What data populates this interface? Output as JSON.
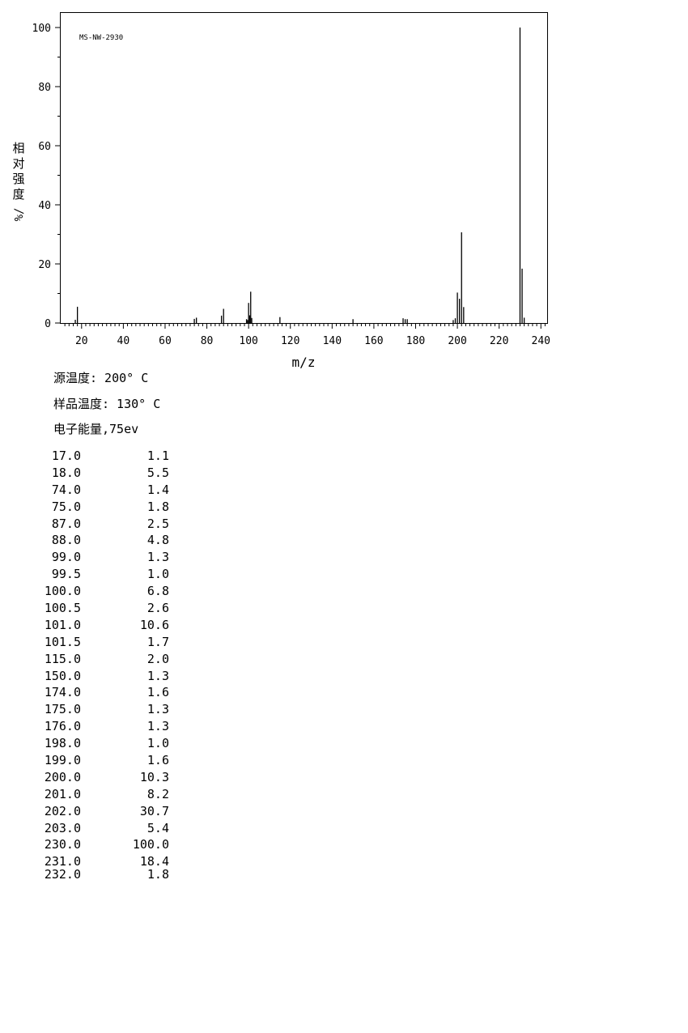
{
  "chart_data": {
    "type": "bar",
    "title": "",
    "watermark": "MS-NW-2930",
    "xlabel": "m/z",
    "ylabel": "相对强度/%",
    "xlim": [
      10,
      243
    ],
    "ylim": [
      0,
      105
    ],
    "xticks": [
      20,
      40,
      60,
      80,
      100,
      120,
      140,
      160,
      180,
      200,
      220,
      240
    ],
    "yticks": [
      0,
      20,
      40,
      60,
      80,
      100
    ],
    "grid": false,
    "series": [
      {
        "x": [
          17.0,
          18.0,
          74.0,
          75.0,
          87.0,
          88.0,
          99.0,
          99.5,
          100.0,
          100.5,
          101.0,
          101.5,
          115.0,
          150.0,
          174.0,
          175.0,
          176.0,
          198.0,
          199.0,
          200.0,
          201.0,
          202.0,
          203.0,
          230.0,
          231.0,
          232.0
        ],
        "values": [
          1.1,
          5.5,
          1.4,
          1.8,
          2.5,
          4.8,
          1.3,
          1.0,
          6.8,
          2.6,
          10.6,
          1.7,
          2.0,
          1.3,
          1.6,
          1.3,
          1.3,
          1.0,
          1.6,
          10.3,
          8.2,
          30.7,
          5.4,
          100.0,
          18.4,
          1.8
        ]
      }
    ]
  },
  "conditions": {
    "source_temp": "源温度: 200° C",
    "sample_temp": "样品温度: 130° C",
    "electron_energy": "电子能量,75ev"
  },
  "peaks": [
    {
      "mz": "17.0",
      "intensity": "1.1"
    },
    {
      "mz": "18.0",
      "intensity": "5.5"
    },
    {
      "mz": "74.0",
      "intensity": "1.4"
    },
    {
      "mz": "75.0",
      "intensity": "1.8"
    },
    {
      "mz": "87.0",
      "intensity": "2.5"
    },
    {
      "mz": "88.0",
      "intensity": "4.8"
    },
    {
      "mz": "99.0",
      "intensity": "1.3"
    },
    {
      "mz": "99.5",
      "intensity": "1.0"
    },
    {
      "mz": "100.0",
      "intensity": "6.8"
    },
    {
      "mz": "100.5",
      "intensity": "2.6"
    },
    {
      "mz": "101.0",
      "intensity": "10.6"
    },
    {
      "mz": "101.5",
      "intensity": "1.7"
    },
    {
      "mz": "115.0",
      "intensity": "2.0"
    },
    {
      "mz": "150.0",
      "intensity": "1.3"
    },
    {
      "mz": "174.0",
      "intensity": "1.6"
    },
    {
      "mz": "175.0",
      "intensity": "1.3"
    },
    {
      "mz": "176.0",
      "intensity": "1.3"
    },
    {
      "mz": "198.0",
      "intensity": "1.0"
    },
    {
      "mz": "199.0",
      "intensity": "1.6"
    },
    {
      "mz": "200.0",
      "intensity": "10.3"
    },
    {
      "mz": "201.0",
      "intensity": "8.2"
    },
    {
      "mz": "202.0",
      "intensity": "30.7"
    },
    {
      "mz": "203.0",
      "intensity": "5.4"
    },
    {
      "mz": "230.0",
      "intensity": "100.0"
    },
    {
      "mz": "231.0",
      "intensity": "18.4"
    },
    {
      "mz": "232.0",
      "intensity": "1.8"
    }
  ]
}
